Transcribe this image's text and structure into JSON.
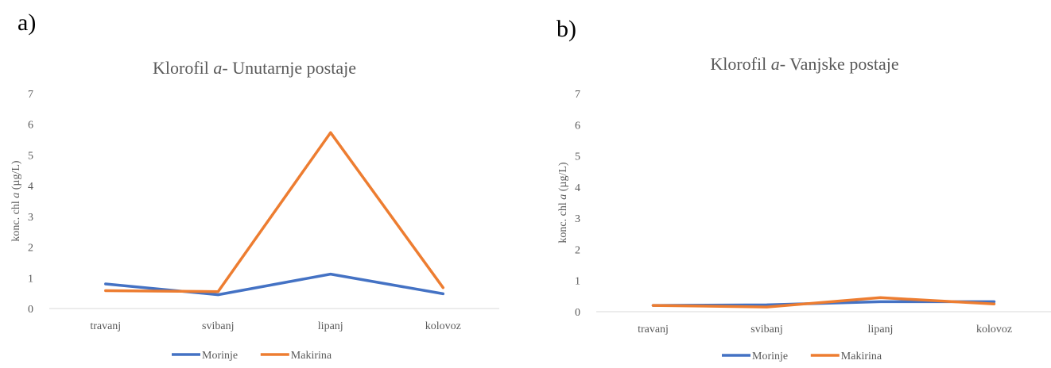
{
  "panels": [
    {
      "letter": "a)"
    },
    {
      "letter": "b)"
    }
  ],
  "chart_data": [
    {
      "type": "line",
      "title": "Klorofil ",
      "title_italic": "a",
      "title_rest": "- Unutarnje postaje",
      "xlabel": "",
      "ylabel": "konc. chl ",
      "ylabel_italic": "a",
      "ylabel_rest": " (µg/L)",
      "categories": [
        "travanj",
        "svibanj",
        "lipanj",
        "kolovoz"
      ],
      "ylim": [
        0,
        7
      ],
      "yticks": [
        "0",
        "1",
        "2",
        "3",
        "4",
        "5",
        "6",
        "7"
      ],
      "grid": false,
      "legend": "bottom",
      "series": [
        {
          "name": "Morinje",
          "color": "#4472C4",
          "values": [
            0.8,
            0.45,
            1.12,
            0.48
          ]
        },
        {
          "name": "Makirina",
          "color": "#ED7D31",
          "values": [
            0.58,
            0.55,
            5.73,
            0.68
          ]
        }
      ]
    },
    {
      "type": "line",
      "title": "Klorofil ",
      "title_italic": "a",
      "title_rest": "- Vanjske postaje",
      "xlabel": "",
      "ylabel": "konc. chl ",
      "ylabel_italic": "a",
      "ylabel_rest": " (µg/L)",
      "categories": [
        "travanj",
        "svibanj",
        "lipanj",
        "kolovoz"
      ],
      "ylim": [
        0,
        7
      ],
      "yticks": [
        "0",
        "1",
        "2",
        "3",
        "4",
        "5",
        "6",
        "7"
      ],
      "grid": false,
      "legend": "bottom",
      "series": [
        {
          "name": "Morinje",
          "color": "#4472C4",
          "values": [
            0.2,
            0.22,
            0.32,
            0.32
          ]
        },
        {
          "name": "Makirina",
          "color": "#ED7D31",
          "values": [
            0.2,
            0.15,
            0.45,
            0.25
          ]
        }
      ]
    }
  ]
}
